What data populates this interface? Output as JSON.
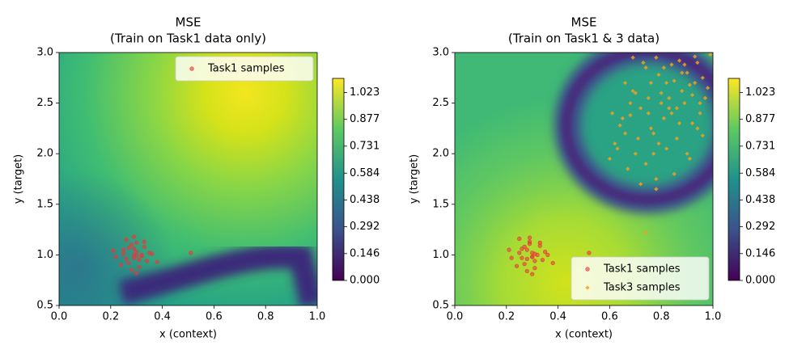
{
  "chart_data": [
    {
      "type": "scatter",
      "title": "MSE",
      "subtitle": "(Train on Task1 data only)",
      "xlabel": "x (context)",
      "ylabel": "y (target)",
      "xlim": [
        0,
        1
      ],
      "ylim": [
        0.5,
        3
      ],
      "xticks": [
        {
          "value": 0,
          "label": "0.0"
        },
        0.2,
        0.4,
        0.6,
        0.8,
        {
          "value": 1,
          "label": "1.0"
        }
      ],
      "yticks": [
        0.5,
        {
          "value": 1,
          "label": "1.0"
        },
        1.5,
        {
          "value": 2,
          "label": "2.0"
        },
        2.5,
        {
          "value": 3,
          "label": "3.0"
        }
      ],
      "legend": "upper right",
      "colorbar": {
        "lim": [
          0,
          1.1
        ],
        "ticks": [
          {
            "value": 0,
            "label": "0.000"
          },
          0.146,
          0.292,
          0.438,
          0.584,
          0.731,
          0.877,
          1.023
        ]
      },
      "series": [
        {
          "name": "Task1 samples",
          "color": "#e8393a",
          "marker": "o",
          "x": [
            0.29,
            0.25,
            0.31,
            0.33,
            0.27,
            0.3,
            0.22,
            0.35,
            0.28,
            0.26,
            0.32,
            0.3,
            0.24,
            0.29,
            0.34,
            0.27,
            0.31,
            0.29,
            0.21,
            0.36,
            0.28,
            0.3,
            0.26,
            0.33,
            0.32,
            0.29,
            0.25,
            0.38,
            0.3,
            0.51
          ],
          "y": [
            1.0,
            1.05,
            0.95,
            1.08,
            0.92,
            1.12,
            0.98,
            1.02,
            0.85,
            1.15,
            0.99,
            1.03,
            0.9,
            1.18,
            0.94,
            1.07,
            0.88,
            0.97,
            1.04,
            1.01,
            1.1,
            0.82,
            0.96,
            1.13,
            1.0,
            1.06,
            1.01,
            0.93,
            0.99,
            1.02
          ]
        }
      ]
    },
    {
      "type": "scatter",
      "title": "MSE",
      "subtitle": "(Train on Task1 & 3 data)",
      "xlabel": "x (context)",
      "ylabel": "y (target)",
      "xlim": [
        0,
        1
      ],
      "ylim": [
        0.5,
        3
      ],
      "xticks": [
        {
          "value": 0,
          "label": "0.0"
        },
        0.2,
        0.4,
        0.6,
        0.8,
        {
          "value": 1,
          "label": "1.0"
        }
      ],
      "yticks": [
        0.5,
        {
          "value": 1,
          "label": "1.0"
        },
        1.5,
        {
          "value": 2,
          "label": "2.0"
        },
        2.5,
        {
          "value": 3,
          "label": "3.0"
        }
      ],
      "legend": "lower right",
      "colorbar": {
        "lim": [
          0,
          1.1
        ],
        "ticks": [
          {
            "value": 0,
            "label": "0.000"
          },
          0.146,
          0.292,
          0.438,
          0.584,
          0.731,
          0.877,
          1.023
        ]
      },
      "series": [
        {
          "name": "Task1 samples",
          "color": "#e8393a",
          "marker": "o",
          "x": [
            0.3,
            0.26,
            0.31,
            0.33,
            0.27,
            0.29,
            0.22,
            0.35,
            0.28,
            0.25,
            0.32,
            0.3,
            0.24,
            0.29,
            0.34,
            0.27,
            0.31,
            0.28,
            0.21,
            0.36,
            0.29,
            0.3,
            0.26,
            0.33,
            0.31,
            0.28,
            0.25,
            0.38,
            0.3,
            0.52
          ],
          "y": [
            0.98,
            1.06,
            0.94,
            1.09,
            0.91,
            1.13,
            0.97,
            1.03,
            0.84,
            1.16,
            1.0,
            1.02,
            0.89,
            1.17,
            0.95,
            1.08,
            0.87,
            0.96,
            1.05,
            1.0,
            1.11,
            0.81,
            0.97,
            1.12,
            1.01,
            1.05,
            1.02,
            0.92,
            0.98,
            1.02
          ]
        },
        {
          "name": "Task3 samples",
          "color": "#f0a020",
          "marker": "+",
          "x": [
            0.62,
            0.65,
            0.7,
            0.74,
            0.78,
            0.82,
            0.86,
            0.9,
            0.94,
            0.97,
            0.6,
            0.66,
            0.72,
            0.76,
            0.8,
            0.84,
            0.88,
            0.92,
            0.96,
            0.99,
            0.63,
            0.68,
            0.71,
            0.75,
            0.79,
            0.83,
            0.87,
            0.91,
            0.95,
            0.64,
            0.69,
            0.73,
            0.77,
            0.81,
            0.85,
            0.89,
            0.93,
            0.98,
            0.61,
            0.67,
            0.74,
            0.78,
            0.82,
            0.86,
            0.9,
            0.94,
            0.7,
            0.76,
            0.8,
            0.84,
            0.88,
            0.92,
            0.96,
            0.72,
            0.78,
            0.85,
            0.91,
            0.66,
            0.69,
            0.75,
            0.81,
            0.87,
            0.93,
            0.79,
            0.83,
            0.89,
            0.95,
            0.68,
            0.77,
            0.74
          ],
          "y": [
            2.1,
            2.35,
            2.6,
            2.85,
            2.95,
            2.7,
            2.45,
            2.8,
            2.9,
            2.55,
            1.95,
            2.2,
            2.45,
            2.7,
            2.5,
            2.88,
            2.62,
            2.3,
            2.75,
            2.98,
            2.05,
            2.5,
            2.15,
            2.4,
            2.78,
            2.55,
            2.92,
            2.68,
            2.4,
            2.28,
            2.62,
            2.9,
            2.2,
            2.35,
            2.72,
            2.5,
            2.96,
            2.65,
            2.4,
            1.85,
            1.9,
            1.75,
            2.05,
            2.15,
            2.0,
            2.25,
            2.0,
            2.25,
            2.6,
            2.4,
            2.8,
            2.58,
            2.18,
            1.7,
            1.65,
            1.8,
            1.95,
            2.7,
            2.95,
            2.55,
            2.85,
            2.3,
            2.7,
            2.1,
            2.45,
            2.88,
            2.5,
            2.38,
            2.0,
            1.22
          ]
        }
      ]
    }
  ]
}
